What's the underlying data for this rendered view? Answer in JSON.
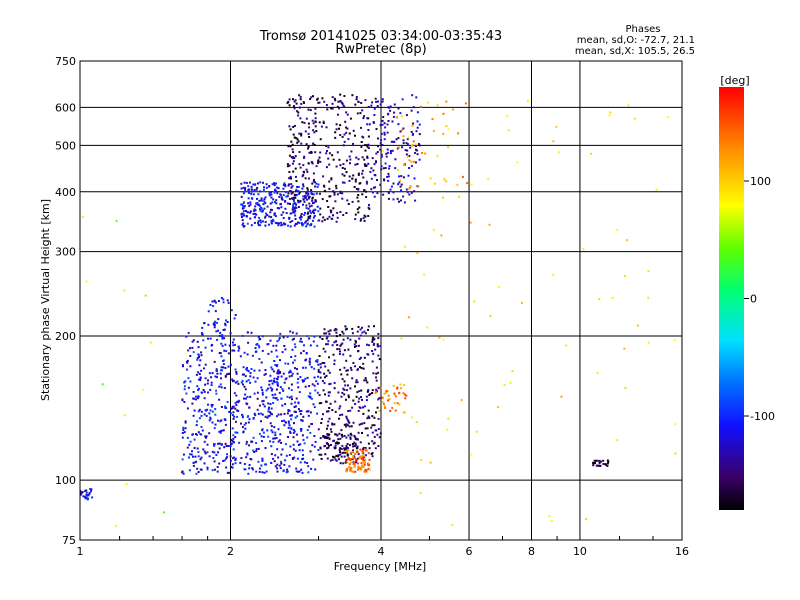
{
  "chart_data": {
    "type": "scatter",
    "title": "Tromsø 20141025 03:34:00-03:35:43",
    "subtitle": "RwPretec (8p)",
    "xlabel": "Frequency [MHz]",
    "ylabel": "Stationary phase Virtual Height [km]",
    "x_scale": "log",
    "y_scale": "log",
    "xlim": [
      1,
      16
    ],
    "ylim": [
      75,
      750
    ],
    "x_ticks": [
      "1",
      "2",
      "4",
      "6",
      "8",
      "10",
      "16"
    ],
    "y_ticks": [
      "75",
      "100",
      "200",
      "300",
      "400",
      "500",
      "600",
      "750"
    ],
    "grid": true,
    "stats_header": "Phases",
    "stats_lines": [
      "mean, sd,O: -72.7, 21.1",
      "mean, sd,X: 105.5, 26.5"
    ],
    "colorbar": {
      "label": "[deg]",
      "ticks": [
        "100",
        "0",
        "-100"
      ],
      "range": [
        -180,
        180
      ],
      "tick_values": [
        100,
        0,
        -100
      ]
    },
    "clusters": [
      {
        "x": [
          1.6,
          3.0
        ],
        "y": [
          103,
          205
        ],
        "phase": -110,
        "n": 650
      },
      {
        "x": [
          1.7,
          2.8
        ],
        "y": [
          105,
          170
        ],
        "phase": -125,
        "n": 160
      },
      {
        "x": [
          3.0,
          4.0
        ],
        "y": [
          110,
          210
        ],
        "phase": -150,
        "n": 340
      },
      {
        "x": [
          3.0,
          3.6
        ],
        "y": [
          108,
          125
        ],
        "phase": -165,
        "n": 80
      },
      {
        "x": [
          3.4,
          3.8
        ],
        "y": [
          104,
          116
        ],
        "phase": 140,
        "n": 90
      },
      {
        "x": [
          3.9,
          4.5
        ],
        "y": [
          138,
          160
        ],
        "phase": 130,
        "n": 40
      },
      {
        "x": [
          2.1,
          3.0
        ],
        "y": [
          338,
          420
        ],
        "phase": -115,
        "n": 320
      },
      {
        "x": [
          2.6,
          3.8
        ],
        "y": [
          345,
          640
        ],
        "phase": -155,
        "n": 380
      },
      {
        "x": [
          3.8,
          4.8
        ],
        "y": [
          380,
          640
        ],
        "phase": -130,
        "n": 170
      },
      {
        "x": [
          4.3,
          6.0
        ],
        "y": [
          400,
          620
        ],
        "phase": 120,
        "n": 40
      },
      {
        "x": [
          1.75,
          2.05
        ],
        "y": [
          200,
          245
        ],
        "phase": -110,
        "n": 40
      },
      {
        "x": [
          1.0,
          1.06
        ],
        "y": [
          91,
          96
        ],
        "phase": -115,
        "n": 25
      },
      {
        "x": [
          10.6,
          11.4
        ],
        "y": [
          107,
          110
        ],
        "phase": -170,
        "n": 25
      },
      {
        "x": [
          4.0,
          16.0
        ],
        "y": [
          80,
          650
        ],
        "phase": 90,
        "n": 80
      },
      {
        "x": [
          1.0,
          1.6
        ],
        "y": [
          78,
          380
        ],
        "phase": 60,
        "n": 12
      }
    ]
  }
}
